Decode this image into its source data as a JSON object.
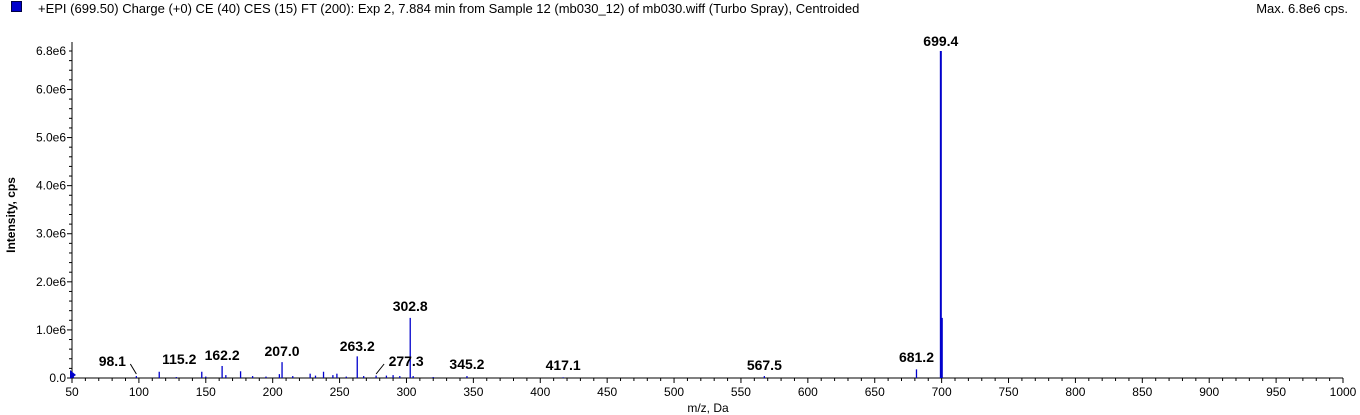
{
  "header": {
    "title": "+EPI (699.50) Charge (+0) CE (40) CES (15) FT (200): Exp 2, 7.884 min from Sample 12 (mb030_12) of mb030.wiff (Turbo Spray), Centroided",
    "max_label": "Max. 6.8e6 cps.",
    "swatch_color": "#0000cc"
  },
  "chart_data": {
    "type": "bar",
    "title": "+EPI (699.50) Charge (+0) CE (40) CES (15) FT (200): Exp 2, 7.884 min from Sample 12 (mb030_12) of mb030.wiff (Turbo Spray), Centroided",
    "xlabel": "m/z, Da",
    "ylabel": "Intensity, cps",
    "xlim": [
      50,
      1000
    ],
    "ylim": [
      0,
      7000000
    ],
    "x_ticks": [
      50,
      100,
      150,
      200,
      250,
      300,
      350,
      400,
      450,
      500,
      550,
      600,
      650,
      700,
      750,
      800,
      850,
      900,
      950,
      1000
    ],
    "x_tick_labels": [
      "50",
      "100",
      "150",
      "200",
      "250",
      "300",
      "350",
      "400",
      "450",
      "500",
      "550",
      "600",
      "650",
      "700",
      "750",
      "800",
      "850",
      "900",
      "950",
      "1000"
    ],
    "y_ticks": [
      0,
      1000000,
      2000000,
      3000000,
      4000000,
      5000000,
      6000000,
      6800000
    ],
    "y_tick_labels": [
      "0.0",
      "1.0e6",
      "2.0e6",
      "3.0e6",
      "4.0e6",
      "5.0e6",
      "6.0e6",
      "6.8e6"
    ],
    "grid": false,
    "bar_color": "#0000cc",
    "peaks": [
      {
        "mz": 51.0,
        "intensity": 30000
      },
      {
        "mz": 98.1,
        "intensity": 40000
      },
      {
        "mz": 115.2,
        "intensity": 130000
      },
      {
        "mz": 128.0,
        "intensity": 20000
      },
      {
        "mz": 147.0,
        "intensity": 130000
      },
      {
        "mz": 150.0,
        "intensity": 30000
      },
      {
        "mz": 162.2,
        "intensity": 250000
      },
      {
        "mz": 165.0,
        "intensity": 60000
      },
      {
        "mz": 176.0,
        "intensity": 140000
      },
      {
        "mz": 185.0,
        "intensity": 40000
      },
      {
        "mz": 195.0,
        "intensity": 30000
      },
      {
        "mz": 205.0,
        "intensity": 80000
      },
      {
        "mz": 207.0,
        "intensity": 330000
      },
      {
        "mz": 215.0,
        "intensity": 40000
      },
      {
        "mz": 228.0,
        "intensity": 90000
      },
      {
        "mz": 232.0,
        "intensity": 50000
      },
      {
        "mz": 238.0,
        "intensity": 130000
      },
      {
        "mz": 245.0,
        "intensity": 60000
      },
      {
        "mz": 248.0,
        "intensity": 90000
      },
      {
        "mz": 255.0,
        "intensity": 30000
      },
      {
        "mz": 263.2,
        "intensity": 450000
      },
      {
        "mz": 268.0,
        "intensity": 40000
      },
      {
        "mz": 277.3,
        "intensity": 50000
      },
      {
        "mz": 285.0,
        "intensity": 50000
      },
      {
        "mz": 290.0,
        "intensity": 60000
      },
      {
        "mz": 295.0,
        "intensity": 40000
      },
      {
        "mz": 302.8,
        "intensity": 1250000
      },
      {
        "mz": 305.0,
        "intensity": 40000
      },
      {
        "mz": 320.0,
        "intensity": 20000
      },
      {
        "mz": 345.2,
        "intensity": 40000
      },
      {
        "mz": 417.1,
        "intensity": 15000
      },
      {
        "mz": 567.5,
        "intensity": 40000
      },
      {
        "mz": 681.2,
        "intensity": 180000
      },
      {
        "mz": 699.4,
        "intensity": 6800000
      },
      {
        "mz": 700.4,
        "intensity": 1250000
      }
    ],
    "peak_labels": [
      {
        "text": "98.1",
        "mz": 98.1
      },
      {
        "text": "115.2",
        "mz": 115.2
      },
      {
        "text": "162.2",
        "mz": 162.2
      },
      {
        "text": "207.0",
        "mz": 207.0
      },
      {
        "text": "263.2",
        "mz": 263.2
      },
      {
        "text": "277.3",
        "mz": 277.3
      },
      {
        "text": "302.8",
        "mz": 302.8
      },
      {
        "text": "345.2",
        "mz": 345.2
      },
      {
        "text": "417.1",
        "mz": 417.1
      },
      {
        "text": "567.5",
        "mz": 567.5
      },
      {
        "text": "681.2",
        "mz": 681.2
      },
      {
        "text": "699.4",
        "mz": 699.4
      }
    ]
  }
}
